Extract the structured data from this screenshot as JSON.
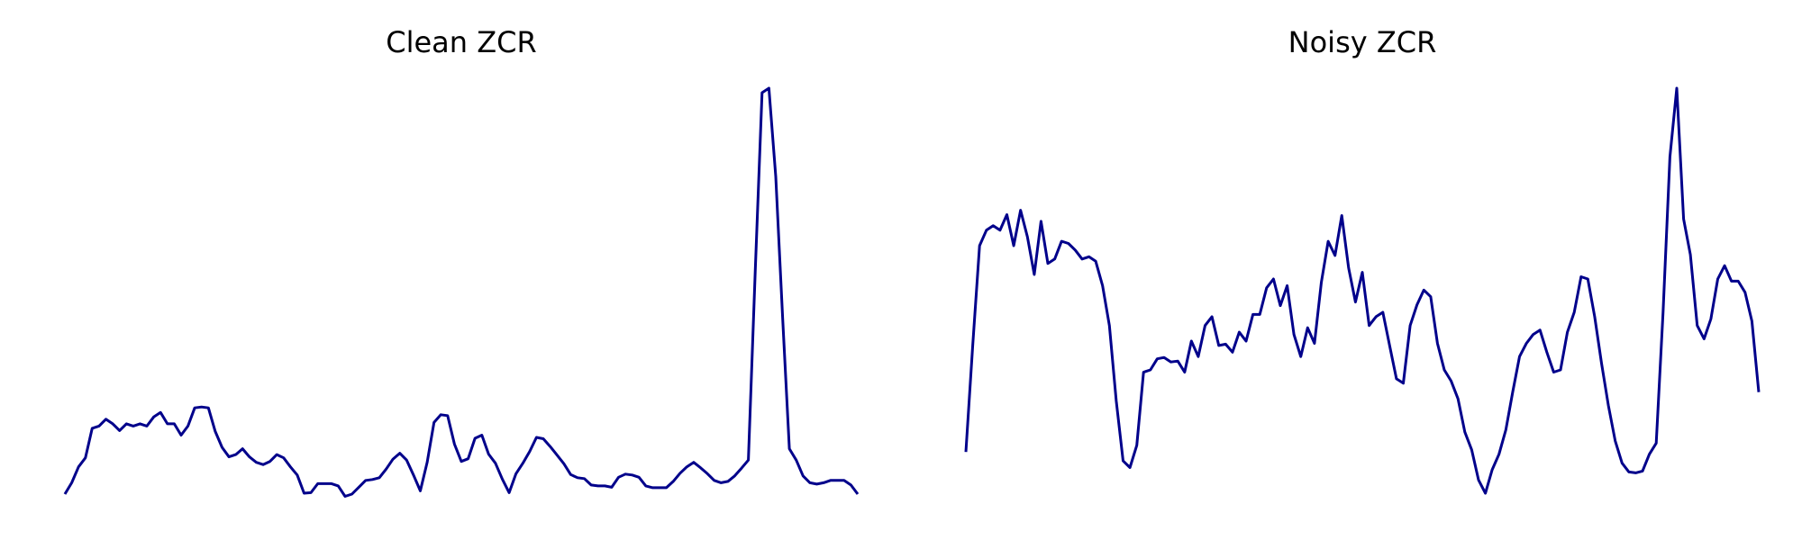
{
  "colors": {
    "line": "#00008b",
    "background": "#ffffff"
  },
  "chart_data": [
    {
      "type": "line",
      "title": "Clean ZCR",
      "xlabel": "",
      "ylabel": "",
      "axes_visible": false,
      "grid": false,
      "values": [
        0.01,
        0.035,
        0.07,
        0.09,
        0.155,
        0.16,
        0.175,
        0.165,
        0.15,
        0.165,
        0.16,
        0.165,
        0.16,
        0.18,
        0.19,
        0.165,
        0.165,
        0.14,
        0.16,
        0.2,
        0.202,
        0.2,
        0.148,
        0.113,
        0.092,
        0.097,
        0.11,
        0.092,
        0.08,
        0.075,
        0.082,
        0.097,
        0.09,
        0.07,
        0.052,
        0.012,
        0.013,
        0.033,
        0.033,
        0.033,
        0.028,
        0.005,
        0.01,
        0.025,
        0.04,
        0.042,
        0.046,
        0.065,
        0.087,
        0.1,
        0.085,
        0.052,
        0.017,
        0.08,
        0.168,
        0.185,
        0.183,
        0.12,
        0.082,
        0.088,
        0.133,
        0.14,
        0.098,
        0.078,
        0.043,
        0.013,
        0.055,
        0.078,
        0.104,
        0.135,
        0.132,
        0.115,
        0.096,
        0.077,
        0.053,
        0.046,
        0.044,
        0.03,
        0.028,
        0.028,
        0.025,
        0.047,
        0.054,
        0.052,
        0.047,
        0.028,
        0.024,
        0.024,
        0.024,
        0.038,
        0.056,
        0.07,
        0.08,
        0.068,
        0.055,
        0.04,
        0.035,
        0.038,
        0.05,
        0.067,
        0.085,
        0.5,
        0.895,
        0.905,
        0.71,
        0.4,
        0.11,
        0.085,
        0.05,
        0.035,
        0.032,
        0.035,
        0.04,
        0.04,
        0.04,
        0.03,
        0.01
      ],
      "ylim": [
        0,
        0.905
      ]
    },
    {
      "type": "line",
      "title": "Noisy ZCR",
      "xlabel": "",
      "ylabel": "",
      "axes_visible": false,
      "grid": false,
      "values": [
        0.105,
        0.345,
        0.57,
        0.605,
        0.615,
        0.605,
        0.64,
        0.57,
        0.65,
        0.59,
        0.505,
        0.625,
        0.53,
        0.54,
        0.58,
        0.575,
        0.56,
        0.54,
        0.545,
        0.535,
        0.48,
        0.39,
        0.22,
        0.085,
        0.07,
        0.12,
        0.285,
        0.29,
        0.315,
        0.318,
        0.308,
        0.31,
        0.285,
        0.355,
        0.32,
        0.39,
        0.41,
        0.345,
        0.348,
        0.33,
        0.375,
        0.355,
        0.415,
        0.415,
        0.475,
        0.495,
        0.435,
        0.48,
        0.37,
        0.32,
        0.385,
        0.35,
        0.487,
        0.58,
        0.548,
        0.638,
        0.52,
        0.443,
        0.51,
        0.39,
        0.41,
        0.42,
        0.345,
        0.27,
        0.26,
        0.39,
        0.437,
        0.47,
        0.455,
        0.35,
        0.29,
        0.265,
        0.225,
        0.15,
        0.11,
        0.042,
        0.012,
        0.065,
        0.1,
        0.155,
        0.24,
        0.32,
        0.35,
        0.37,
        0.38,
        0.33,
        0.285,
        0.29,
        0.375,
        0.42,
        0.5,
        0.495,
        0.41,
        0.305,
        0.21,
        0.13,
        0.08,
        0.06,
        0.058,
        0.062,
        0.1,
        0.125,
        0.42,
        0.77,
        0.925,
        0.63,
        0.55,
        0.39,
        0.36,
        0.405,
        0.495,
        0.525,
        0.49,
        0.49,
        0.465,
        0.4,
        0.24
      ],
      "ylim": [
        0,
        0.925
      ]
    }
  ]
}
